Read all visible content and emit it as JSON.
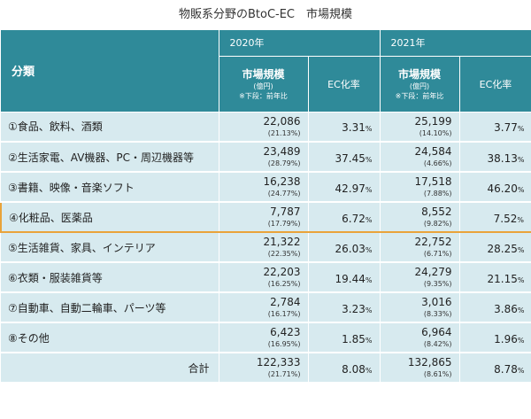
{
  "title": "物販系分野のBtoC-EC　市場規模",
  "header": {
    "category": "分類",
    "year_2020": "2020年",
    "year_2021": "2021年",
    "market_size": "市場規模",
    "unit": "(億円)",
    "note": "※下段：前年比",
    "ec_rate": "EC化率"
  },
  "rows": [
    {
      "label": "①食品、飲料、酒類",
      "v2020": "22,086",
      "c2020": "(21.13%)",
      "ec2020": "3.31",
      "v2021": "25,199",
      "c2021": "(14.10%)",
      "ec2021": "3.77"
    },
    {
      "label": "②生活家電、AV機器、PC・周辺機器等",
      "v2020": "23,489",
      "c2020": "(28.79%)",
      "ec2020": "37.45",
      "v2021": "24,584",
      "c2021": "(4.66%)",
      "ec2021": "38.13"
    },
    {
      "label": "③書籍、映像・音楽ソフト",
      "v2020": "16,238",
      "c2020": "(24.77%)",
      "ec2020": "42.97",
      "v2021": "17,518",
      "c2021": "(7.88%)",
      "ec2021": "46.20"
    },
    {
      "label": "④化粧品、医薬品",
      "v2020": "7,787",
      "c2020": "(17.79%)",
      "ec2020": "6.72",
      "v2021": "8,552",
      "c2021": "(9.82%)",
      "ec2021": "7.52"
    },
    {
      "label": "⑤生活雑貨、家具、インテリア",
      "v2020": "21,322",
      "c2020": "(22.35%)",
      "ec2020": "26.03",
      "v2021": "22,752",
      "c2021": "(6.71%)",
      "ec2021": "28.25"
    },
    {
      "label": "⑥衣類・服装雑貨等",
      "v2020": "22,203",
      "c2020": "(16.25%)",
      "ec2020": "19.44",
      "v2021": "24,279",
      "c2021": "(9.35%)",
      "ec2021": "21.15"
    },
    {
      "label": "⑦自動車、自動二輪車、パーツ等",
      "v2020": "2,784",
      "c2020": "(16.17%)",
      "ec2020": "3.23",
      "v2021": "3,016",
      "c2021": "(8.33%)",
      "ec2021": "3.86"
    },
    {
      "label": "⑧その他",
      "v2020": "6,423",
      "c2020": "(16.95%)",
      "ec2020": "1.85",
      "v2021": "6,964",
      "c2021": "(8.42%)",
      "ec2021": "1.96"
    }
  ],
  "total": {
    "label": "合計",
    "v2020": "122,333",
    "c2020": "(21.71%)",
    "ec2020": "8.08",
    "v2021": "132,865",
    "c2021": "(8.61%)",
    "ec2021": "8.78"
  },
  "percent_sign": "%",
  "highlight_row_index": 3,
  "colors": {
    "header_bg": "#2f8a99",
    "row_bg": "#d7eaef",
    "highlight_border": "#e9a33a"
  }
}
